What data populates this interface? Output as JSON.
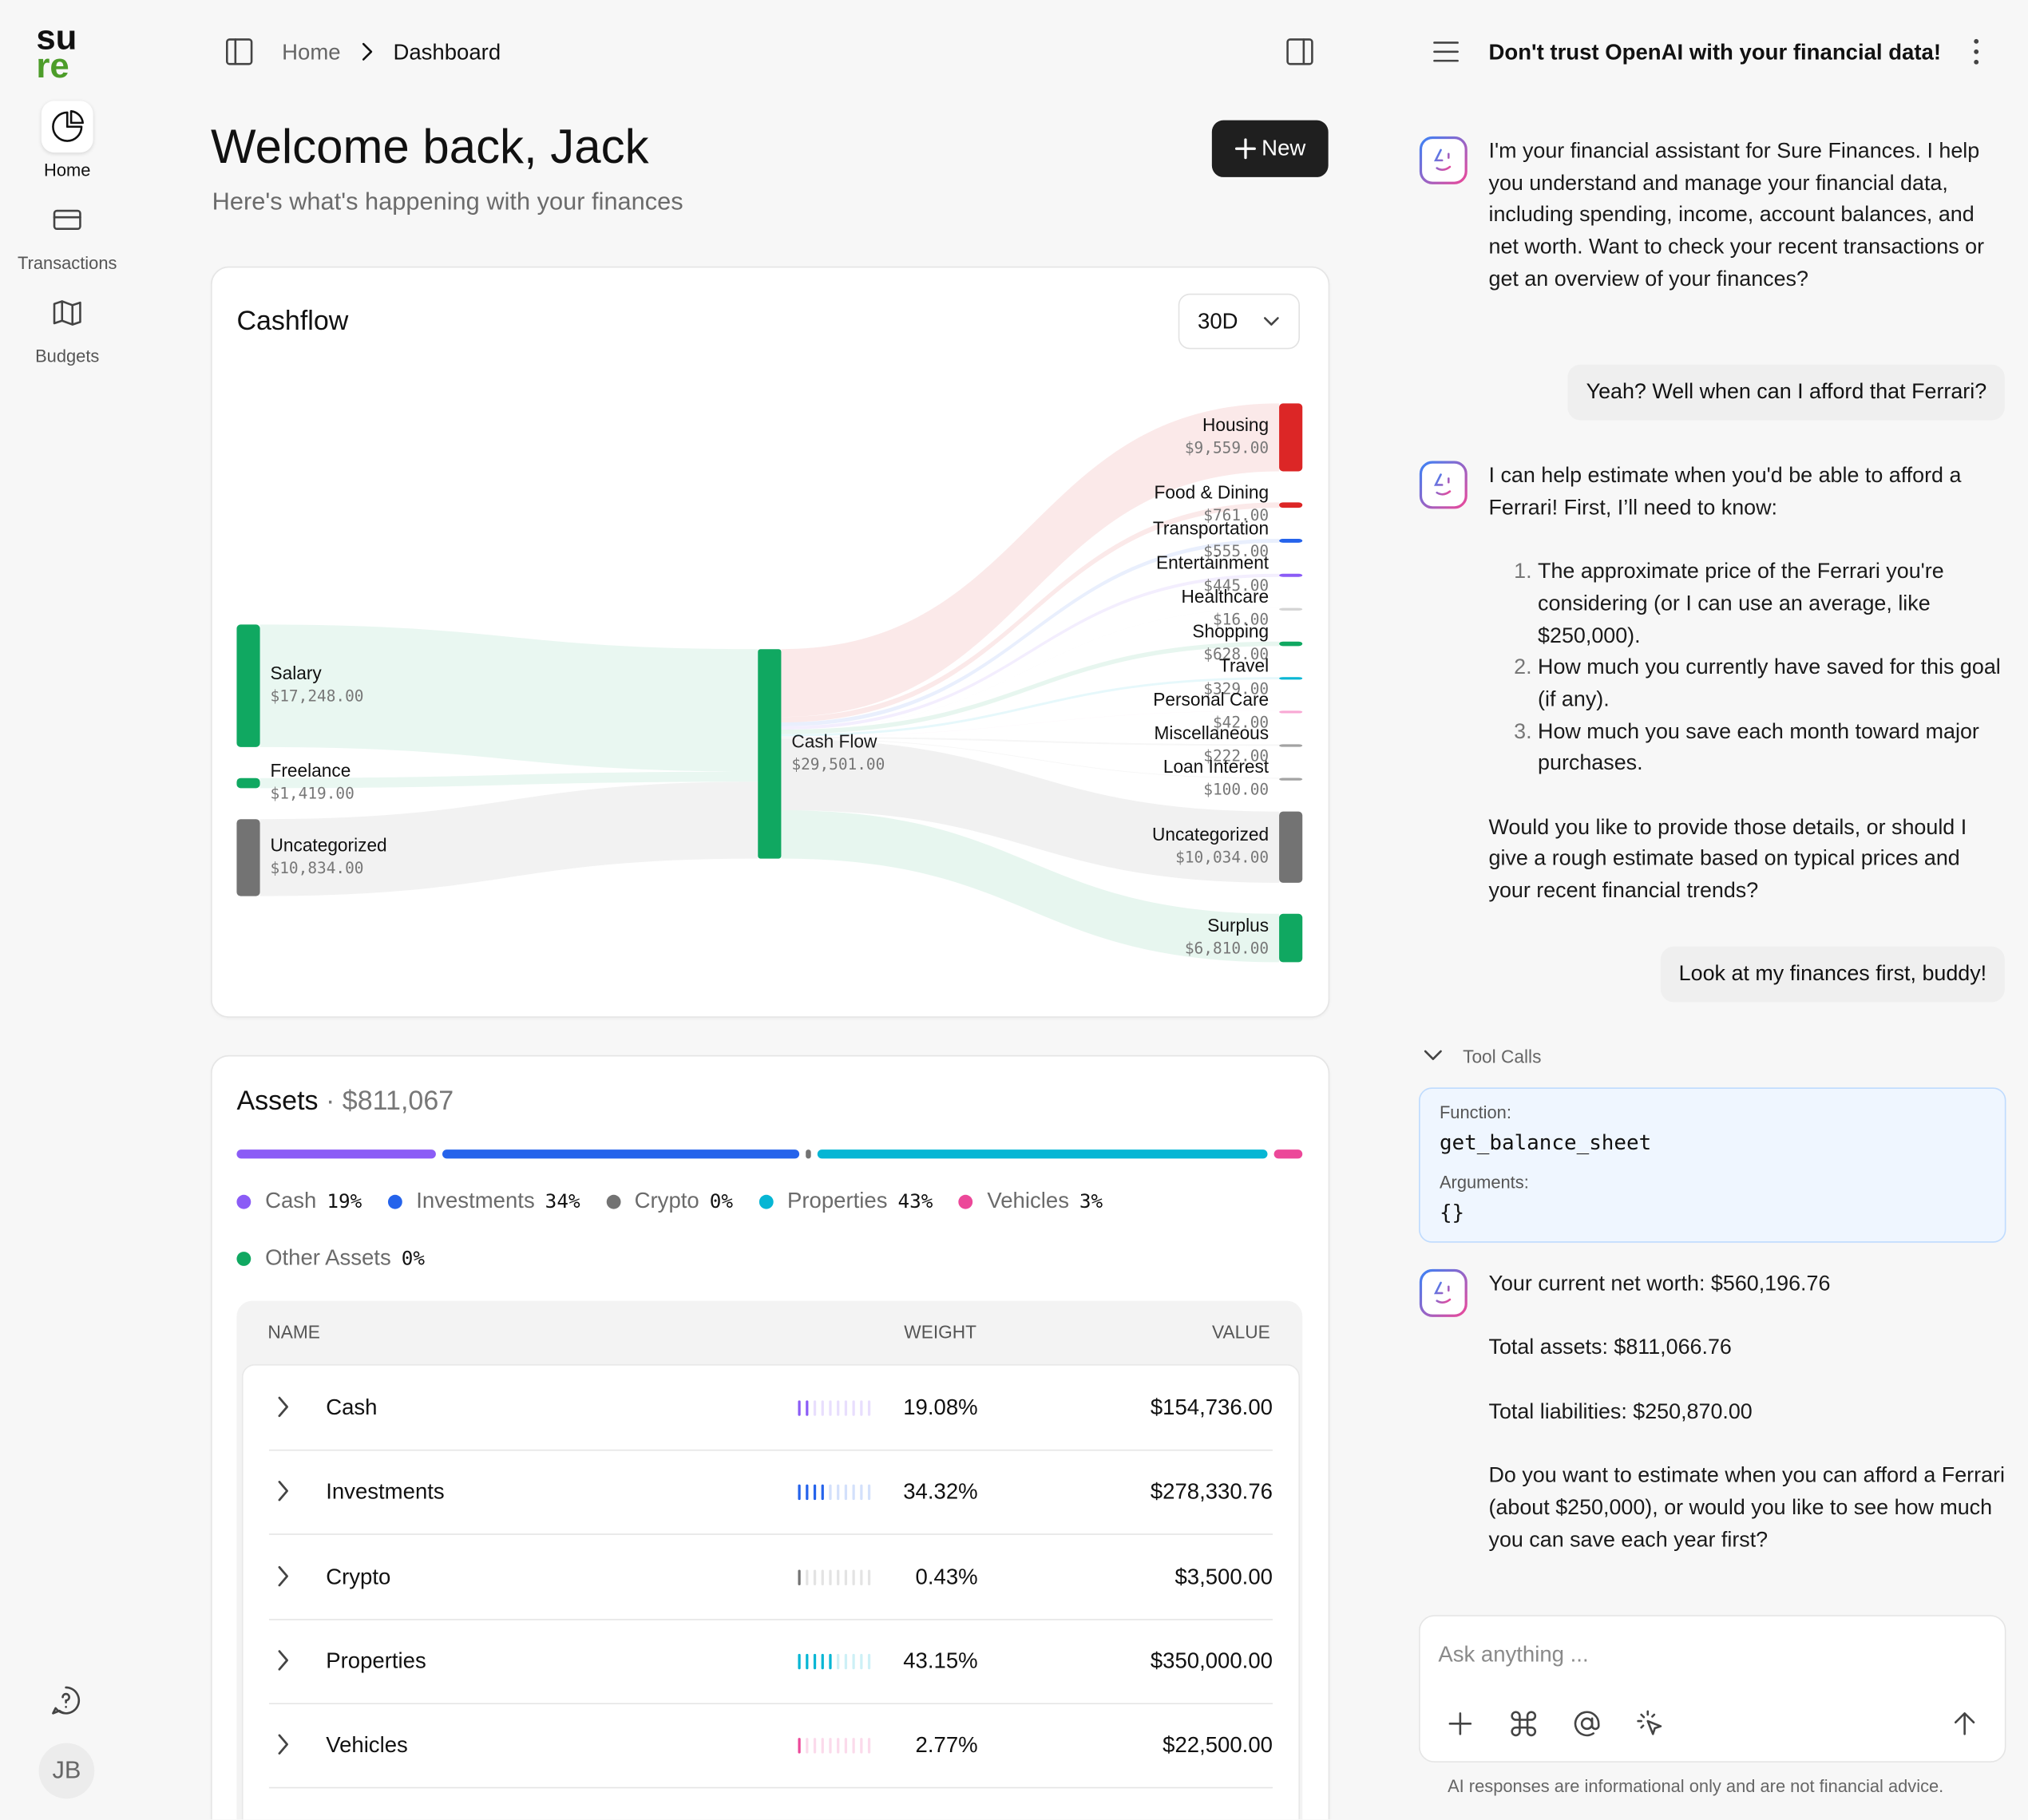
{
  "sidebar": {
    "logo": [
      "su",
      "re"
    ],
    "nav": [
      "Home",
      "Transactions",
      "Budgets"
    ],
    "avatar": "JB"
  },
  "header": {
    "breadcrumb": [
      "Home",
      "Dashboard"
    ]
  },
  "welcome": {
    "title": "Welcome back, Jack",
    "subtitle": "Here's what's happening with your finances",
    "new_button": "New"
  },
  "cashflow": {
    "title": "Cashflow",
    "period": "30D",
    "sources": [
      {
        "name": "Salary",
        "value": 17248,
        "label": "$17,248.00",
        "color": "#10a861"
      },
      {
        "name": "Freelance",
        "value": 1419,
        "label": "$1,419.00",
        "color": "#10a861"
      },
      {
        "name": "Uncategorized",
        "value": 10834,
        "label": "$10,834.00",
        "color": "#737373"
      }
    ],
    "center": {
      "name": "Cash Flow",
      "value": 29501,
      "label": "$29,501.00",
      "color": "#10a861"
    },
    "targets": [
      {
        "name": "Housing",
        "value": 9559,
        "label": "$9,559.00",
        "color": "#dc2626"
      },
      {
        "name": "Food & Dining",
        "value": 761,
        "label": "$761.00",
        "color": "#dc2626"
      },
      {
        "name": "Transportation",
        "value": 555,
        "label": "$555.00",
        "color": "#2563eb"
      },
      {
        "name": "Entertainment",
        "value": 445,
        "label": "$445.00",
        "color": "#8b5cf6"
      },
      {
        "name": "Healthcare",
        "value": 16,
        "label": "$16.00",
        "color": "#d4d4d4"
      },
      {
        "name": "Shopping",
        "value": 628,
        "label": "$628.00",
        "color": "#10a861"
      },
      {
        "name": "Travel",
        "value": 329,
        "label": "$329.00",
        "color": "#06b6d4"
      },
      {
        "name": "Personal Care",
        "value": 42,
        "label": "$42.00",
        "color": "#f9a8d4"
      },
      {
        "name": "Miscellaneous",
        "value": 222,
        "label": "$222.00",
        "color": "#a3a3a3"
      },
      {
        "name": "Loan Interest",
        "value": 100,
        "label": "$100.00",
        "color": "#a3a3a3"
      },
      {
        "name": "Uncategorized",
        "value": 10034,
        "label": "$10,034.00",
        "color": "#737373"
      },
      {
        "name": "Surplus",
        "value": 6810,
        "label": "$6,810.00",
        "color": "#10a861"
      }
    ]
  },
  "assets": {
    "title": "Assets",
    "subtitle": "· $811,067",
    "legend": [
      {
        "name": "Cash",
        "value": 19,
        "label": "19%",
        "color": "#8b5cf6"
      },
      {
        "name": "Investments",
        "value": 34,
        "label": "34%",
        "color": "#2563eb"
      },
      {
        "name": "Crypto",
        "value": 0,
        "label": "0%",
        "color": "#737373"
      },
      {
        "name": "Properties",
        "value": 43,
        "label": "43%",
        "color": "#06b6d4"
      },
      {
        "name": "Vehicles",
        "value": 3,
        "label": "3%",
        "color": "#ec4899"
      },
      {
        "name": "Other Assets",
        "value": 0,
        "label": "0%",
        "color": "#10a861"
      }
    ],
    "table": {
      "columns": [
        "NAME",
        "WEIGHT",
        "VALUE"
      ],
      "rows": [
        {
          "name": "Cash",
          "weight": {
            "value": 19.08,
            "label": "19.08%"
          },
          "value": "$154,736.00",
          "color": "#8b5cf6"
        },
        {
          "name": "Investments",
          "weight": {
            "value": 34.32,
            "label": "34.32%"
          },
          "value": "$278,330.76",
          "color": "#2563eb"
        },
        {
          "name": "Crypto",
          "weight": {
            "value": 0.43,
            "label": "0.43%"
          },
          "value": "$3,500.00",
          "color": "#737373"
        },
        {
          "name": "Properties",
          "weight": {
            "value": 43.15,
            "label": "43.15%"
          },
          "value": "$350,000.00",
          "color": "#06b6d4"
        },
        {
          "name": "Vehicles",
          "weight": {
            "value": 2.77,
            "label": "2.77%"
          },
          "value": "$22,500.00",
          "color": "#ec4899"
        }
      ]
    }
  },
  "chat": {
    "title": "Don't trust OpenAI with your financial data!",
    "messages": [
      {
        "role": "assistant",
        "blocks": [
          {
            "p": "I'm your financial assistant for Sure Finances. I help you understand and manage your financial data, including spending, income, account balances, and net worth. Want to check your recent transactions or get an overview of your finances?"
          }
        ]
      },
      {
        "role": "user",
        "text": "Yeah? Well when can I afford that Ferrari?"
      },
      {
        "role": "assistant",
        "blocks": [
          {
            "p": "I can help estimate when you'd be able to afford a Ferrari! First, I’ll need to know:"
          },
          {
            "ol": [
              "The approximate price of the Ferrari you're considering (or I can use an average, like $250,000).",
              "How much you currently have saved for this goal (if any).",
              "How much you save each month toward major purchases."
            ]
          },
          {
            "p": "Would you like to provide those details, or should I give a rough estimate based on typical prices and your recent financial trends?"
          }
        ]
      },
      {
        "role": "user",
        "text": "Look at my finances first, buddy!"
      },
      {
        "role": "assistant",
        "blocks": [
          {
            "p": "Your current net worth: $560,196.76"
          },
          {
            "p": "Total assets: $811,066.76"
          },
          {
            "p": "Total liabilities: $250,870.00"
          },
          {
            "p": "Do you want to estimate when you can afford a Ferrari (about $250,000), or would you like to see how much you can save each year first?"
          }
        ]
      }
    ],
    "tool_call": {
      "label": "Tool Calls",
      "function_label": "Function:",
      "function": "get_balance_sheet",
      "arguments_label": "Arguments:",
      "arguments": "{}"
    },
    "placeholder": "Ask anything ...",
    "disclaimer": "AI responses are informational only and are not financial advice."
  }
}
